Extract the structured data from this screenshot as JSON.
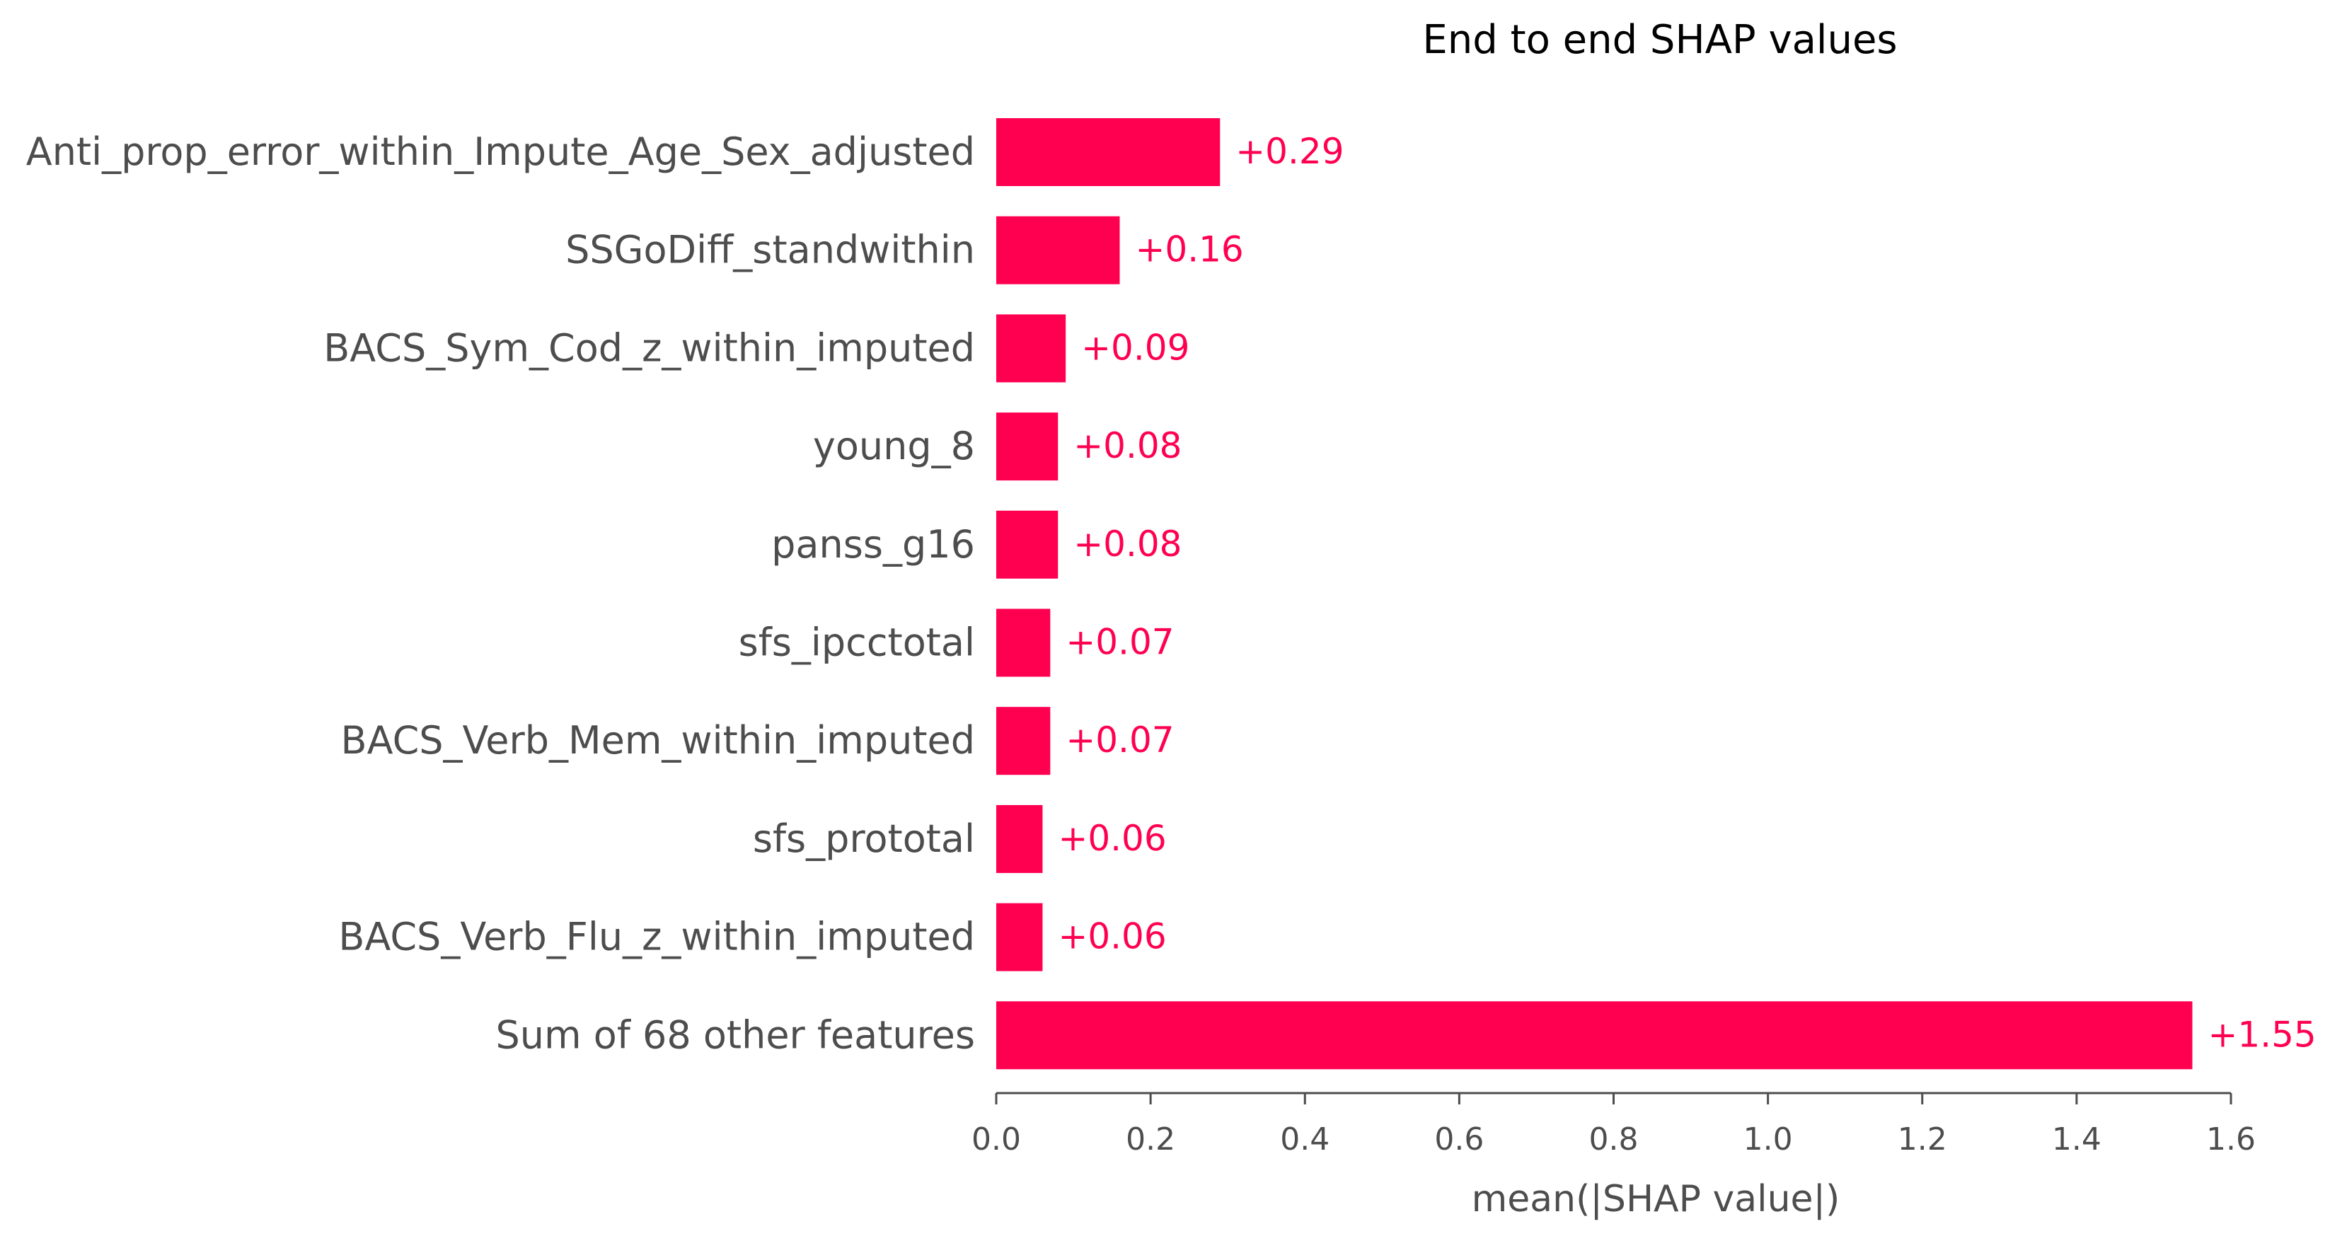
{
  "chart_data": {
    "type": "bar",
    "orientation": "horizontal",
    "title": "End to end SHAP values",
    "xlabel": "mean(|SHAP value|)",
    "ylabel": "",
    "categories": [
      "Anti_prop_error_within_Impute_Age_Sex_adjusted",
      "SSGoDiff_standwithin",
      "BACS_Sym_Cod_z_within_imputed",
      "young_8",
      "panss_g16",
      "sfs_ipcctotal",
      "BACS_Verb_Mem_within_imputed",
      "sfs_prototal",
      "BACS_Verb_Flu_z_within_imputed",
      "Sum of 68 other features"
    ],
    "values": [
      0.29,
      0.16,
      0.09,
      0.08,
      0.08,
      0.07,
      0.07,
      0.06,
      0.06,
      1.55
    ],
    "value_labels": [
      "+0.29",
      "+0.16",
      "+0.09",
      "+0.08",
      "+0.08",
      "+0.07",
      "+0.07",
      "+0.06",
      "+0.06",
      "+1.55"
    ],
    "xlim": [
      0,
      1.6
    ],
    "xticks": [
      0.0,
      0.2,
      0.4,
      0.6,
      0.8,
      1.0,
      1.2,
      1.4,
      1.6
    ],
    "xtick_labels": [
      "0.0",
      "0.2",
      "0.4",
      "0.6",
      "0.8",
      "1.0",
      "1.2",
      "1.4",
      "1.6"
    ],
    "grid": false,
    "legend": "none",
    "colors": {
      "bar": "#ff0051",
      "value_label": "#ff0051",
      "axis": "#4d4d4d",
      "text": "#4d4d4d",
      "title": "#000000"
    }
  }
}
